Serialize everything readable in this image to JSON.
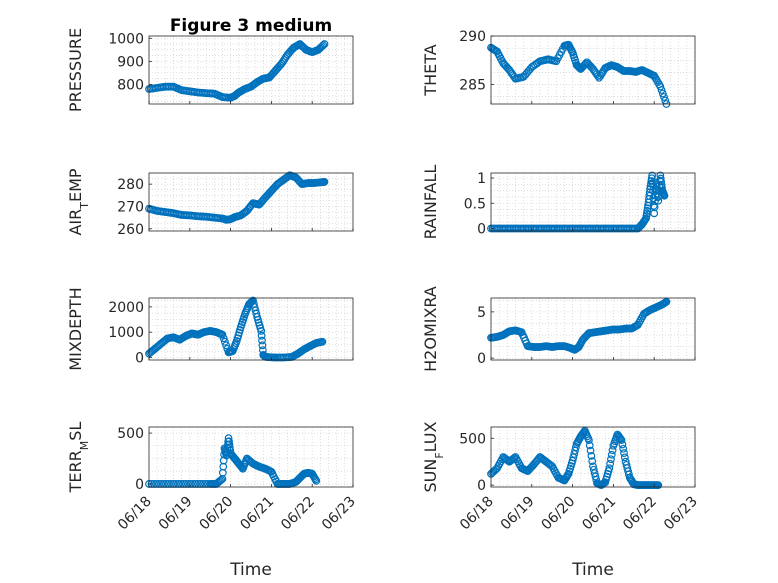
{
  "figure": {
    "title": "Figure 3 medium"
  },
  "colors": {
    "marker": "#0072BD",
    "axis": "#262626",
    "grid": "#c8c8c8"
  },
  "chart_data": [
    {
      "id": "pressure",
      "type": "scatter",
      "ylabel": "PRESSURE",
      "xticks": [],
      "xtick_labels": [],
      "ylim": [
        715,
        1010
      ],
      "yticks": [
        800,
        900,
        1000
      ],
      "x": [
        0.0,
        0.2,
        0.4,
        0.6,
        0.8,
        1.0,
        1.2,
        1.4,
        1.6,
        1.8,
        2.0,
        2.1,
        2.2,
        2.35,
        2.5,
        2.65,
        2.8,
        2.95,
        3.1,
        3.25,
        3.4,
        3.55,
        3.7,
        3.85,
        4.0,
        4.15,
        4.3
      ],
      "y": [
        780,
        785,
        790,
        790,
        775,
        770,
        765,
        762,
        760,
        745,
        742,
        750,
        765,
        780,
        790,
        810,
        825,
        830,
        860,
        890,
        930,
        960,
        975,
        950,
        940,
        950,
        975
      ]
    },
    {
      "id": "theta",
      "type": "scatter",
      "ylabel": "THETA",
      "xticks": [],
      "xtick_labels": [],
      "ylim": [
        283,
        290
      ],
      "yticks": [
        285,
        290
      ],
      "x": [
        0.0,
        0.15,
        0.3,
        0.45,
        0.6,
        0.8,
        1.0,
        1.2,
        1.4,
        1.6,
        1.8,
        1.9,
        2.0,
        2.1,
        2.2,
        2.35,
        2.5,
        2.65,
        2.8,
        2.95,
        3.1,
        3.25,
        3.4,
        3.55,
        3.7,
        3.85,
        4.0,
        4.15,
        4.3
      ],
      "y": [
        288.8,
        288.4,
        287.2,
        286.5,
        285.6,
        285.8,
        286.8,
        287.4,
        287.6,
        287.4,
        289.0,
        289.1,
        288.3,
        287.0,
        286.6,
        287.3,
        286.6,
        285.7,
        286.7,
        287.0,
        286.8,
        286.4,
        286.4,
        286.3,
        286.5,
        286.2,
        285.9,
        284.8,
        283.0
      ]
    },
    {
      "id": "airtemp",
      "type": "scatter",
      "ylabel": "AIR_TEMP",
      "xticks": [],
      "xtick_labels": [],
      "ylim": [
        259,
        285
      ],
      "yticks": [
        260,
        270,
        280
      ],
      "x": [
        0.0,
        0.2,
        0.4,
        0.6,
        0.8,
        1.0,
        1.2,
        1.4,
        1.6,
        1.8,
        1.9,
        2.0,
        2.1,
        2.25,
        2.4,
        2.55,
        2.7,
        2.85,
        3.0,
        3.15,
        3.3,
        3.45,
        3.6,
        3.75,
        3.9,
        4.05,
        4.2,
        4.3
      ],
      "y": [
        269,
        268,
        267.5,
        267,
        266.2,
        266,
        265.6,
        265.4,
        265,
        264.6,
        264,
        264.3,
        265.2,
        266,
        268,
        271.5,
        270.8,
        274,
        277,
        280,
        282,
        284,
        283,
        280,
        280.5,
        280.5,
        280.8,
        281
      ]
    },
    {
      "id": "rainfall",
      "type": "scatter",
      "ylabel": "RAINFALL",
      "xticks": [],
      "xtick_labels": [],
      "ylim": [
        -0.05,
        1.1
      ],
      "yticks": [
        0,
        0.5,
        1
      ],
      "x": [
        0.0,
        0.2,
        0.4,
        0.6,
        0.8,
        1.0,
        1.2,
        1.4,
        1.6,
        1.8,
        2.0,
        2.2,
        2.4,
        2.6,
        2.8,
        3.0,
        3.2,
        3.4,
        3.6,
        3.7,
        3.8,
        3.85,
        3.9,
        3.95,
        4.0,
        4.05,
        4.1,
        4.15,
        4.2,
        4.25
      ],
      "y": [
        0,
        0,
        0,
        0,
        0,
        0,
        0,
        0,
        0,
        0,
        0,
        0,
        0,
        0,
        0,
        0,
        0,
        0,
        0,
        0.08,
        0.2,
        0.45,
        0.78,
        1.05,
        0.3,
        0.9,
        0.55,
        1.05,
        0.75,
        0.65
      ]
    },
    {
      "id": "mixdepth",
      "type": "scatter",
      "ylabel": "MIXDEPTH",
      "xticks": [],
      "xtick_labels": [],
      "ylim": [
        -100,
        2350
      ],
      "yticks": [
        0,
        1000,
        2000
      ],
      "x": [
        0.0,
        0.15,
        0.3,
        0.45,
        0.6,
        0.75,
        0.9,
        1.05,
        1.2,
        1.35,
        1.5,
        1.65,
        1.8,
        1.95,
        2.05,
        2.15,
        2.25,
        2.35,
        2.45,
        2.55,
        2.65,
        2.75,
        2.8,
        2.85,
        2.95,
        3.1,
        3.3,
        3.5,
        3.65,
        3.8,
        3.95,
        4.1,
        4.25
      ],
      "y": [
        150,
        350,
        550,
        750,
        800,
        700,
        850,
        950,
        900,
        1000,
        1050,
        1000,
        900,
        200,
        250,
        650,
        1200,
        1700,
        2100,
        2250,
        1600,
        1050,
        100,
        30,
        10,
        0,
        0,
        20,
        150,
        320,
        450,
        570,
        620
      ]
    },
    {
      "id": "h2omixra",
      "type": "scatter",
      "ylabel": "H2OMIXRA",
      "xticks": [],
      "xtick_labels": [],
      "ylim": [
        -0.2,
        6.5
      ],
      "yticks": [
        0,
        5
      ],
      "x": [
        0.0,
        0.15,
        0.3,
        0.45,
        0.6,
        0.75,
        0.9,
        1.05,
        1.2,
        1.35,
        1.5,
        1.65,
        1.8,
        1.95,
        2.05,
        2.15,
        2.25,
        2.4,
        2.55,
        2.7,
        2.85,
        3.0,
        3.15,
        3.3,
        3.45,
        3.6,
        3.75,
        3.9,
        4.05,
        4.2,
        4.3
      ],
      "y": [
        2.2,
        2.3,
        2.5,
        2.9,
        3.0,
        2.8,
        1.3,
        1.2,
        1.2,
        1.3,
        1.2,
        1.3,
        1.3,
        1.1,
        0.9,
        1.2,
        2.0,
        2.7,
        2.8,
        2.9,
        3.0,
        3.1,
        3.1,
        3.2,
        3.2,
        3.6,
        4.8,
        5.2,
        5.5,
        5.8,
        6.1
      ]
    },
    {
      "id": "terrmsl",
      "type": "scatter",
      "ylabel": "TERR_MSL",
      "xticks": [
        "06/18",
        "06/19",
        "06/20",
        "06/21",
        "06/22",
        "06/23"
      ],
      "xtick_labels": [
        "06/18",
        "06/19",
        "06/20",
        "06/21",
        "06/22",
        "06/23"
      ],
      "xlabel": "Time",
      "ylim": [
        -30,
        560
      ],
      "yticks": [
        0,
        500
      ],
      "x": [
        0.0,
        0.3,
        0.6,
        0.9,
        1.2,
        1.5,
        1.65,
        1.8,
        1.85,
        1.9,
        1.95,
        2.0,
        2.1,
        2.2,
        2.3,
        2.4,
        2.55,
        2.7,
        2.85,
        3.0,
        3.15,
        3.3,
        3.45,
        3.6,
        3.7,
        3.8,
        3.9,
        4.0,
        4.1
      ],
      "y": [
        0,
        0,
        0,
        0,
        0,
        0,
        0,
        50,
        350,
        280,
        450,
        300,
        250,
        200,
        150,
        250,
        200,
        170,
        150,
        120,
        0,
        0,
        0,
        20,
        60,
        100,
        110,
        100,
        30
      ]
    },
    {
      "id": "sunflux",
      "type": "scatter",
      "ylabel": "SUN_FLUX",
      "xticks": [
        "06/18",
        "06/19",
        "06/20",
        "06/21",
        "06/22",
        "06/23"
      ],
      "xtick_labels": [
        "06/18",
        "06/19",
        "06/20",
        "06/21",
        "06/22",
        "06/23"
      ],
      "xlabel": "Time",
      "ylim": [
        -20,
        620
      ],
      "yticks": [
        0,
        500
      ],
      "x": [
        0.0,
        0.15,
        0.3,
        0.45,
        0.6,
        0.75,
        0.9,
        1.05,
        1.2,
        1.35,
        1.5,
        1.65,
        1.8,
        1.9,
        2.0,
        2.1,
        2.2,
        2.3,
        2.4,
        2.5,
        2.6,
        2.7,
        2.8,
        2.9,
        3.0,
        3.1,
        3.2,
        3.3,
        3.4,
        3.5,
        3.6,
        3.7,
        3.8,
        3.9,
        4.0,
        4.1
      ],
      "y": [
        120,
        180,
        300,
        250,
        300,
        180,
        150,
        220,
        300,
        250,
        200,
        80,
        50,
        120,
        260,
        440,
        520,
        580,
        480,
        200,
        20,
        0,
        30,
        180,
        420,
        540,
        480,
        250,
        80,
        10,
        0,
        0,
        0,
        0,
        0,
        0
      ]
    }
  ]
}
